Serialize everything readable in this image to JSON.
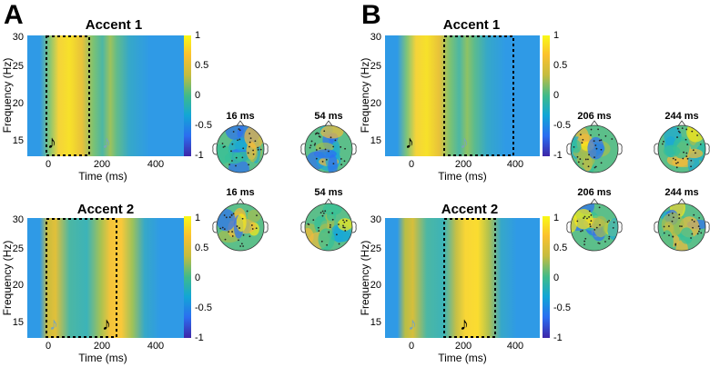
{
  "panels": [
    {
      "letter": "A",
      "plots": [
        {
          "title": "Accent 1",
          "ylabel": "Frequency (Hz)",
          "xlabel": "Time (ms)",
          "yticks": [
            "30",
            "25",
            "20",
            "15"
          ],
          "xticks": [
            "0",
            "200",
            "400"
          ],
          "colorbar_ticks": [
            "1",
            "0.5",
            "0",
            "-0.5",
            "-1"
          ],
          "note_glyph": "♪",
          "topo_labels": [
            "16 ms",
            "54 ms"
          ]
        },
        {
          "title": "Accent 2",
          "ylabel": "Frequency (Hz)",
          "xlabel": "Time (ms)",
          "yticks": [
            "30",
            "25",
            "20",
            "15"
          ],
          "xticks": [
            "0",
            "200",
            "400"
          ],
          "colorbar_ticks": [
            "1",
            "0.5",
            "0",
            "-0.5",
            "-1"
          ],
          "note_glyph": "♪",
          "topo_labels": [
            "16 ms",
            "54 ms"
          ]
        }
      ]
    },
    {
      "letter": "B",
      "plots": [
        {
          "title": "Accent 1",
          "ylabel": "Frequency (Hz)",
          "xlabel": "Time (ms)",
          "yticks": [
            "30",
            "25",
            "20",
            "15"
          ],
          "xticks": [
            "0",
            "200",
            "400"
          ],
          "colorbar_ticks": [
            "1",
            "0.5",
            "0",
            "-0.5",
            "-1"
          ],
          "note_glyph": "♪",
          "topo_labels": [
            "206 ms",
            "244 ms"
          ]
        },
        {
          "title": "Accent 2",
          "ylabel": "Frequency (Hz)",
          "xlabel": "Time (ms)",
          "yticks": [
            "30",
            "25",
            "20",
            "15"
          ],
          "xticks": [
            "0",
            "200",
            "400"
          ],
          "colorbar_ticks": [
            "1",
            "0.5",
            "0",
            "-0.5",
            "-1"
          ],
          "note_glyph": "♪",
          "topo_labels": [
            "206 ms",
            "244 ms"
          ]
        }
      ]
    }
  ],
  "colormap": [
    "#3e26a8",
    "#2d6ff2",
    "#1aa8d6",
    "#34c098",
    "#a6be4e",
    "#f4bb3a",
    "#f9e917"
  ]
}
